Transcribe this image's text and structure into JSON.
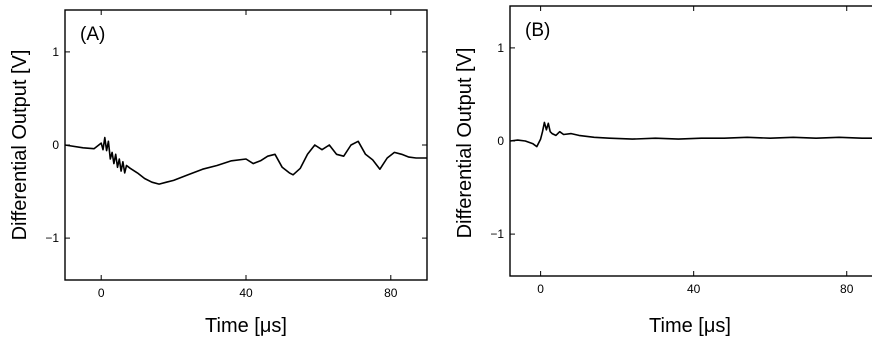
{
  "chart_data": [
    {
      "type": "line",
      "panel_label": "(A)",
      "xlabel": "Time [μs]",
      "ylabel": "Differential Output [V]",
      "xlim": [
        -10,
        90
      ],
      "ylim": [
        -1.45,
        1.45
      ],
      "xticks": [
        0,
        40,
        80
      ],
      "yticks": [
        -1,
        0,
        1
      ],
      "x": [
        -10,
        -5,
        -2,
        0,
        0.5,
        1,
        1.5,
        2,
        2.5,
        3,
        3.5,
        4,
        4.5,
        5,
        5.5,
        6,
        6.5,
        7,
        8,
        10,
        12,
        14,
        16,
        18,
        20,
        24,
        28,
        32,
        36,
        40,
        42,
        44,
        46,
        48,
        50,
        52,
        53,
        55,
        57,
        59,
        61,
        63,
        65,
        67,
        69,
        71,
        73,
        75,
        77,
        79,
        81,
        83,
        85,
        87,
        90
      ],
      "values": [
        0.0,
        -0.03,
        -0.04,
        0.02,
        -0.05,
        0.08,
        -0.06,
        0.04,
        -0.15,
        -0.08,
        -0.2,
        -0.1,
        -0.24,
        -0.15,
        -0.28,
        -0.18,
        -0.3,
        -0.22,
        -0.25,
        -0.3,
        -0.36,
        -0.4,
        -0.42,
        -0.4,
        -0.38,
        -0.32,
        -0.26,
        -0.22,
        -0.17,
        -0.15,
        -0.2,
        -0.17,
        -0.12,
        -0.1,
        -0.24,
        -0.3,
        -0.32,
        -0.25,
        -0.1,
        0.0,
        -0.05,
        0.0,
        -0.1,
        -0.12,
        0.0,
        0.04,
        -0.1,
        -0.16,
        -0.26,
        -0.14,
        -0.08,
        -0.1,
        -0.13,
        -0.14,
        -0.14
      ]
    },
    {
      "type": "line",
      "panel_label": "(B)",
      "xlabel": "Time [μs]",
      "ylabel": "Differential Output [V]",
      "xlim": [
        -8,
        90
      ],
      "ylim": [
        -1.45,
        1.45
      ],
      "xticks": [
        0,
        40,
        80
      ],
      "yticks": [
        -1,
        0,
        1
      ],
      "x": [
        -8,
        -6,
        -4,
        -2,
        -1,
        0,
        0.5,
        1,
        1.5,
        2,
        2.5,
        3,
        4,
        5,
        6,
        8,
        10,
        14,
        18,
        24,
        30,
        36,
        42,
        48,
        54,
        60,
        66,
        72,
        78,
        84,
        90
      ],
      "values": [
        0.0,
        0.01,
        0.0,
        -0.03,
        -0.06,
        0.02,
        0.1,
        0.2,
        0.12,
        0.19,
        0.1,
        0.08,
        0.06,
        0.1,
        0.07,
        0.08,
        0.06,
        0.04,
        0.03,
        0.02,
        0.03,
        0.02,
        0.03,
        0.03,
        0.04,
        0.03,
        0.04,
        0.03,
        0.04,
        0.03,
        0.03
      ]
    }
  ]
}
